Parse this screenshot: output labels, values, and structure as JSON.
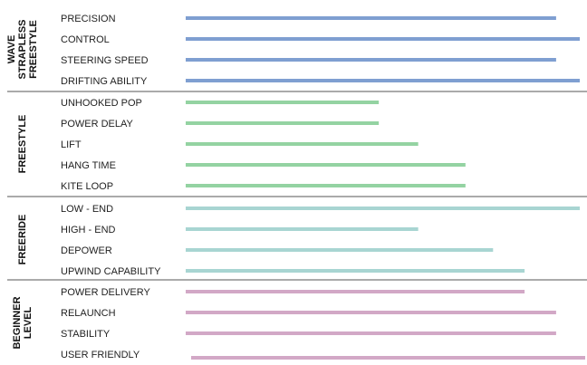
{
  "chart_data": {
    "type": "bar",
    "orientation": "horizontal",
    "scale_max": 100,
    "groups": [
      {
        "label_lines": [
          "WAVE",
          "STRAPLESS",
          "FREESTYLE"
        ],
        "color": "#7f9fd1",
        "rows": [
          {
            "label": "PRECISION",
            "value": 94
          },
          {
            "label": "CONTROL",
            "value": 100
          },
          {
            "label": "STEERING SPEED",
            "value": 94
          },
          {
            "label": "DRIFTING ABILITY",
            "value": 100
          }
        ]
      },
      {
        "label_lines": [
          "FREESTYLE"
        ],
        "color": "#94d3a2",
        "rows": [
          {
            "label": "UNHOOKED POP",
            "value": 49
          },
          {
            "label": "POWER DELAY",
            "value": 49
          },
          {
            "label": "LIFT",
            "value": 59
          },
          {
            "label": "HANG TIME",
            "value": 71
          },
          {
            "label": "KITE LOOP",
            "value": 71
          }
        ]
      },
      {
        "label_lines": [
          "FREERIDE"
        ],
        "color": "#a8d5d2",
        "rows": [
          {
            "label": "LOW - END",
            "value": 100
          },
          {
            "label": "HIGH - END",
            "value": 59
          },
          {
            "label": "DEPOWER",
            "value": 78
          },
          {
            "label": "UPWIND CAPABILITY",
            "value": 86
          }
        ]
      },
      {
        "label_lines": [
          "BEGINNER",
          "LEVEL"
        ],
        "color": "#d2a8c6",
        "rows": [
          {
            "label": "POWER DELIVERY",
            "value": 86
          },
          {
            "label": "RELAUNCH",
            "value": 94
          },
          {
            "label": "STABILITY",
            "value": 94
          },
          {
            "label": "USER FRIENDLY",
            "value": 100
          }
        ]
      }
    ]
  }
}
